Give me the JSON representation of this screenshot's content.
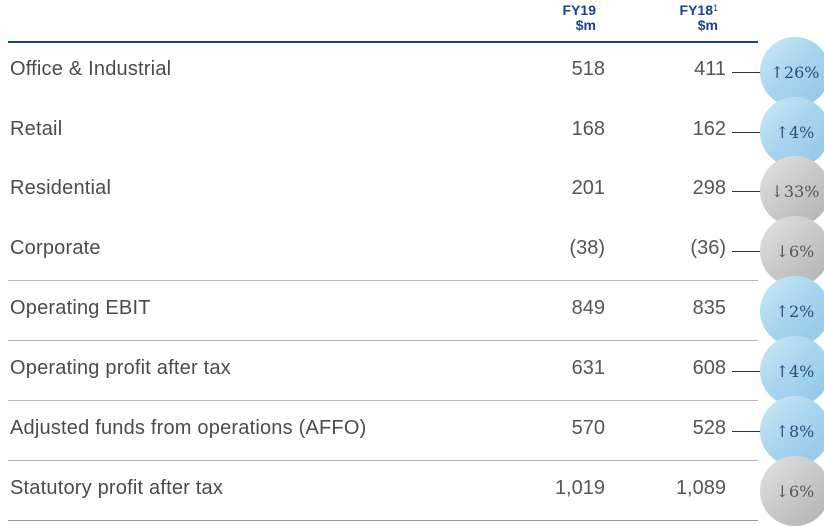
{
  "header": {
    "fy19": {
      "year": "FY19",
      "unit": "$m"
    },
    "fy18": {
      "year": "FY18",
      "note": "1",
      "unit": "$m"
    }
  },
  "rows": [
    {
      "label": "Office & Industrial",
      "fy19": "518",
      "fy18": "411",
      "change": "↑26%",
      "direction": "up"
    },
    {
      "label": "Retail",
      "fy19": "168",
      "fy18": "162",
      "change": "↑4%",
      "direction": "up"
    },
    {
      "label": "Residential",
      "fy19": "201",
      "fy18": "298",
      "change": "↓33%",
      "direction": "down"
    },
    {
      "label": "Corporate",
      "fy19": "(38)",
      "fy18": "(36)",
      "change": "↓6%",
      "direction": "down"
    },
    {
      "label": "Operating EBIT",
      "fy19": "849",
      "fy18": "835",
      "change": "↑2%",
      "direction": "up"
    },
    {
      "label": "Operating profit after tax",
      "fy19": "631",
      "fy18": "608",
      "change": "↑4%",
      "direction": "up"
    },
    {
      "label": "Adjusted funds from operations (AFFO)",
      "fy19": "570",
      "fy18": "528",
      "change": "↑8%",
      "direction": "up"
    },
    {
      "label": "Statutory profit after tax",
      "fy19": "1,019",
      "fy18": "1,089",
      "change": "↓6%",
      "direction": "down"
    }
  ],
  "colors": {
    "header": "#1f3f8f",
    "up": "#a9d6ef",
    "down": "#c9c9c9"
  }
}
